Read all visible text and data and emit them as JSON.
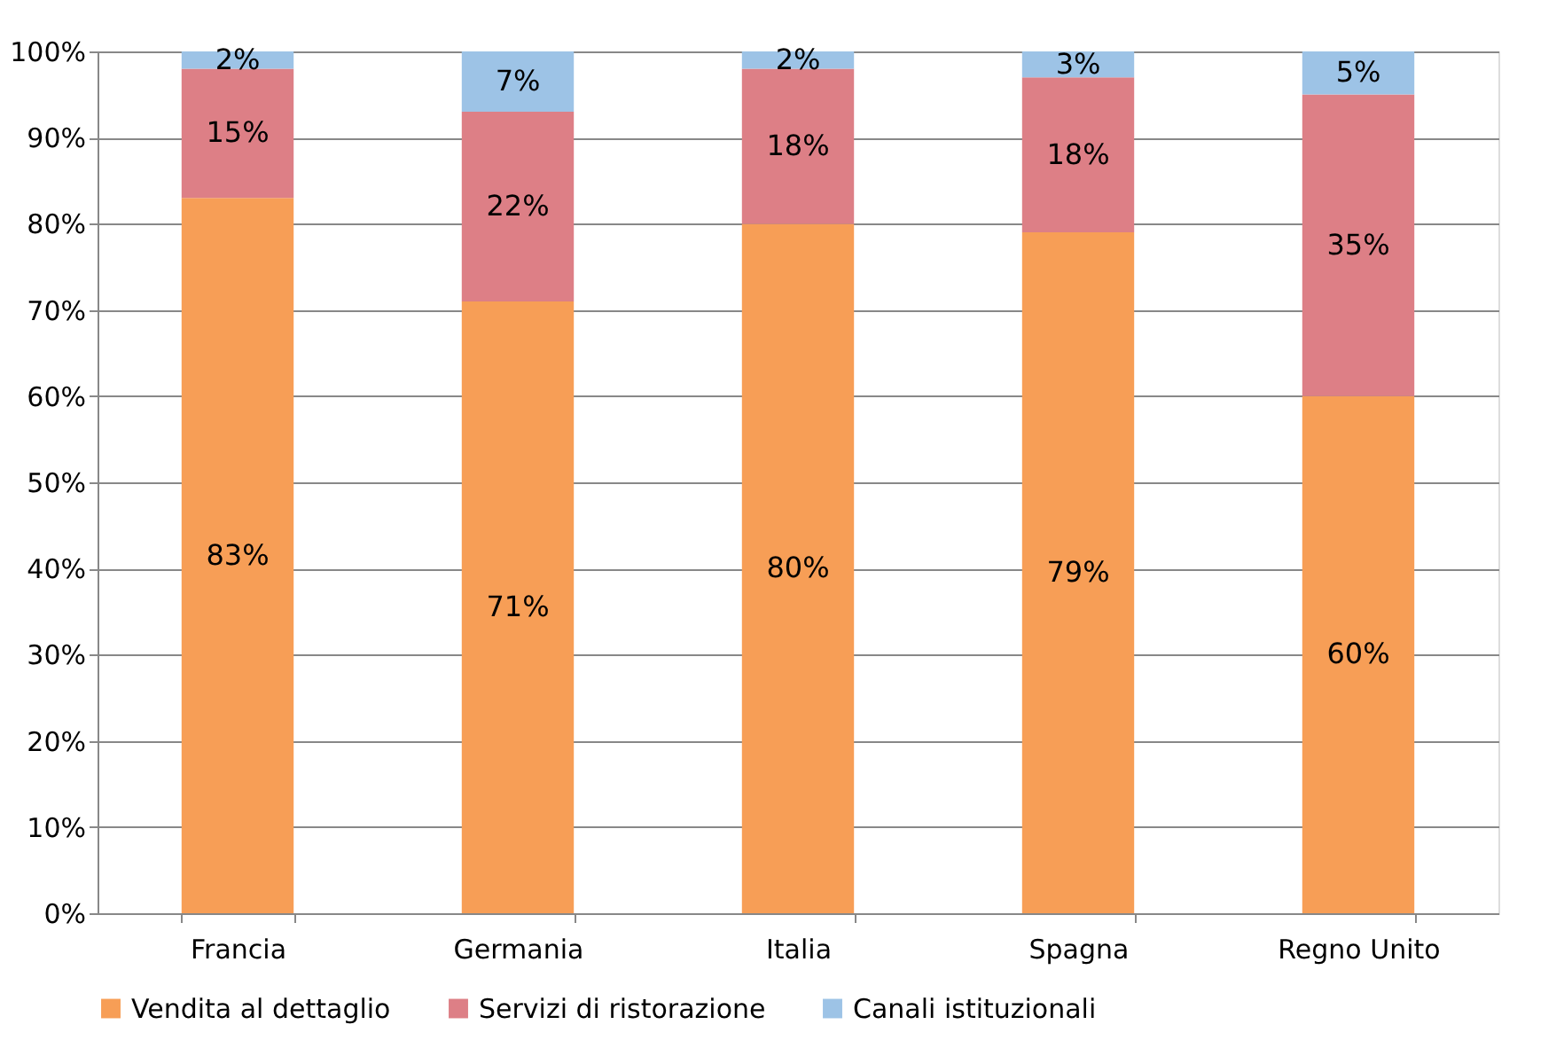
{
  "chart_data": {
    "type": "bar",
    "stacked": true,
    "categories": [
      "Francia",
      "Germania",
      "Italia",
      "Spagna",
      "Regno Unito"
    ],
    "series": [
      {
        "name": "Vendita al dettaglio",
        "color": "#f79e56",
        "values": [
          83,
          71,
          80,
          79,
          60
        ],
        "value_labels": [
          "83%",
          "71%",
          "80%",
          "79%",
          "60%"
        ]
      },
      {
        "name": "Servizi di ristorazione",
        "color": "#dd7f86",
        "values": [
          15,
          22,
          18,
          18,
          35
        ],
        "value_labels": [
          "15%",
          "22%",
          "18%",
          "18%",
          "35%"
        ]
      },
      {
        "name": "Canali istituzionali",
        "color": "#9dc3e6",
        "values": [
          2,
          7,
          2,
          3,
          5
        ],
        "value_labels": [
          "2%",
          "7%",
          "2%",
          "3%",
          "5%"
        ]
      }
    ],
    "ylim": [
      0,
      100
    ],
    "yticks": [
      {
        "value": 0,
        "label": "0%"
      },
      {
        "value": 10,
        "label": "10%"
      },
      {
        "value": 20,
        "label": "20%"
      },
      {
        "value": 30,
        "label": "30%"
      },
      {
        "value": 40,
        "label": "40%"
      },
      {
        "value": 50,
        "label": "50%"
      },
      {
        "value": 60,
        "label": "60%"
      },
      {
        "value": 70,
        "label": "70%"
      },
      {
        "value": 80,
        "label": "80%"
      },
      {
        "value": 90,
        "label": "90%"
      },
      {
        "value": 100,
        "label": "100%"
      }
    ],
    "grid": "y",
    "legend": "bottom"
  }
}
